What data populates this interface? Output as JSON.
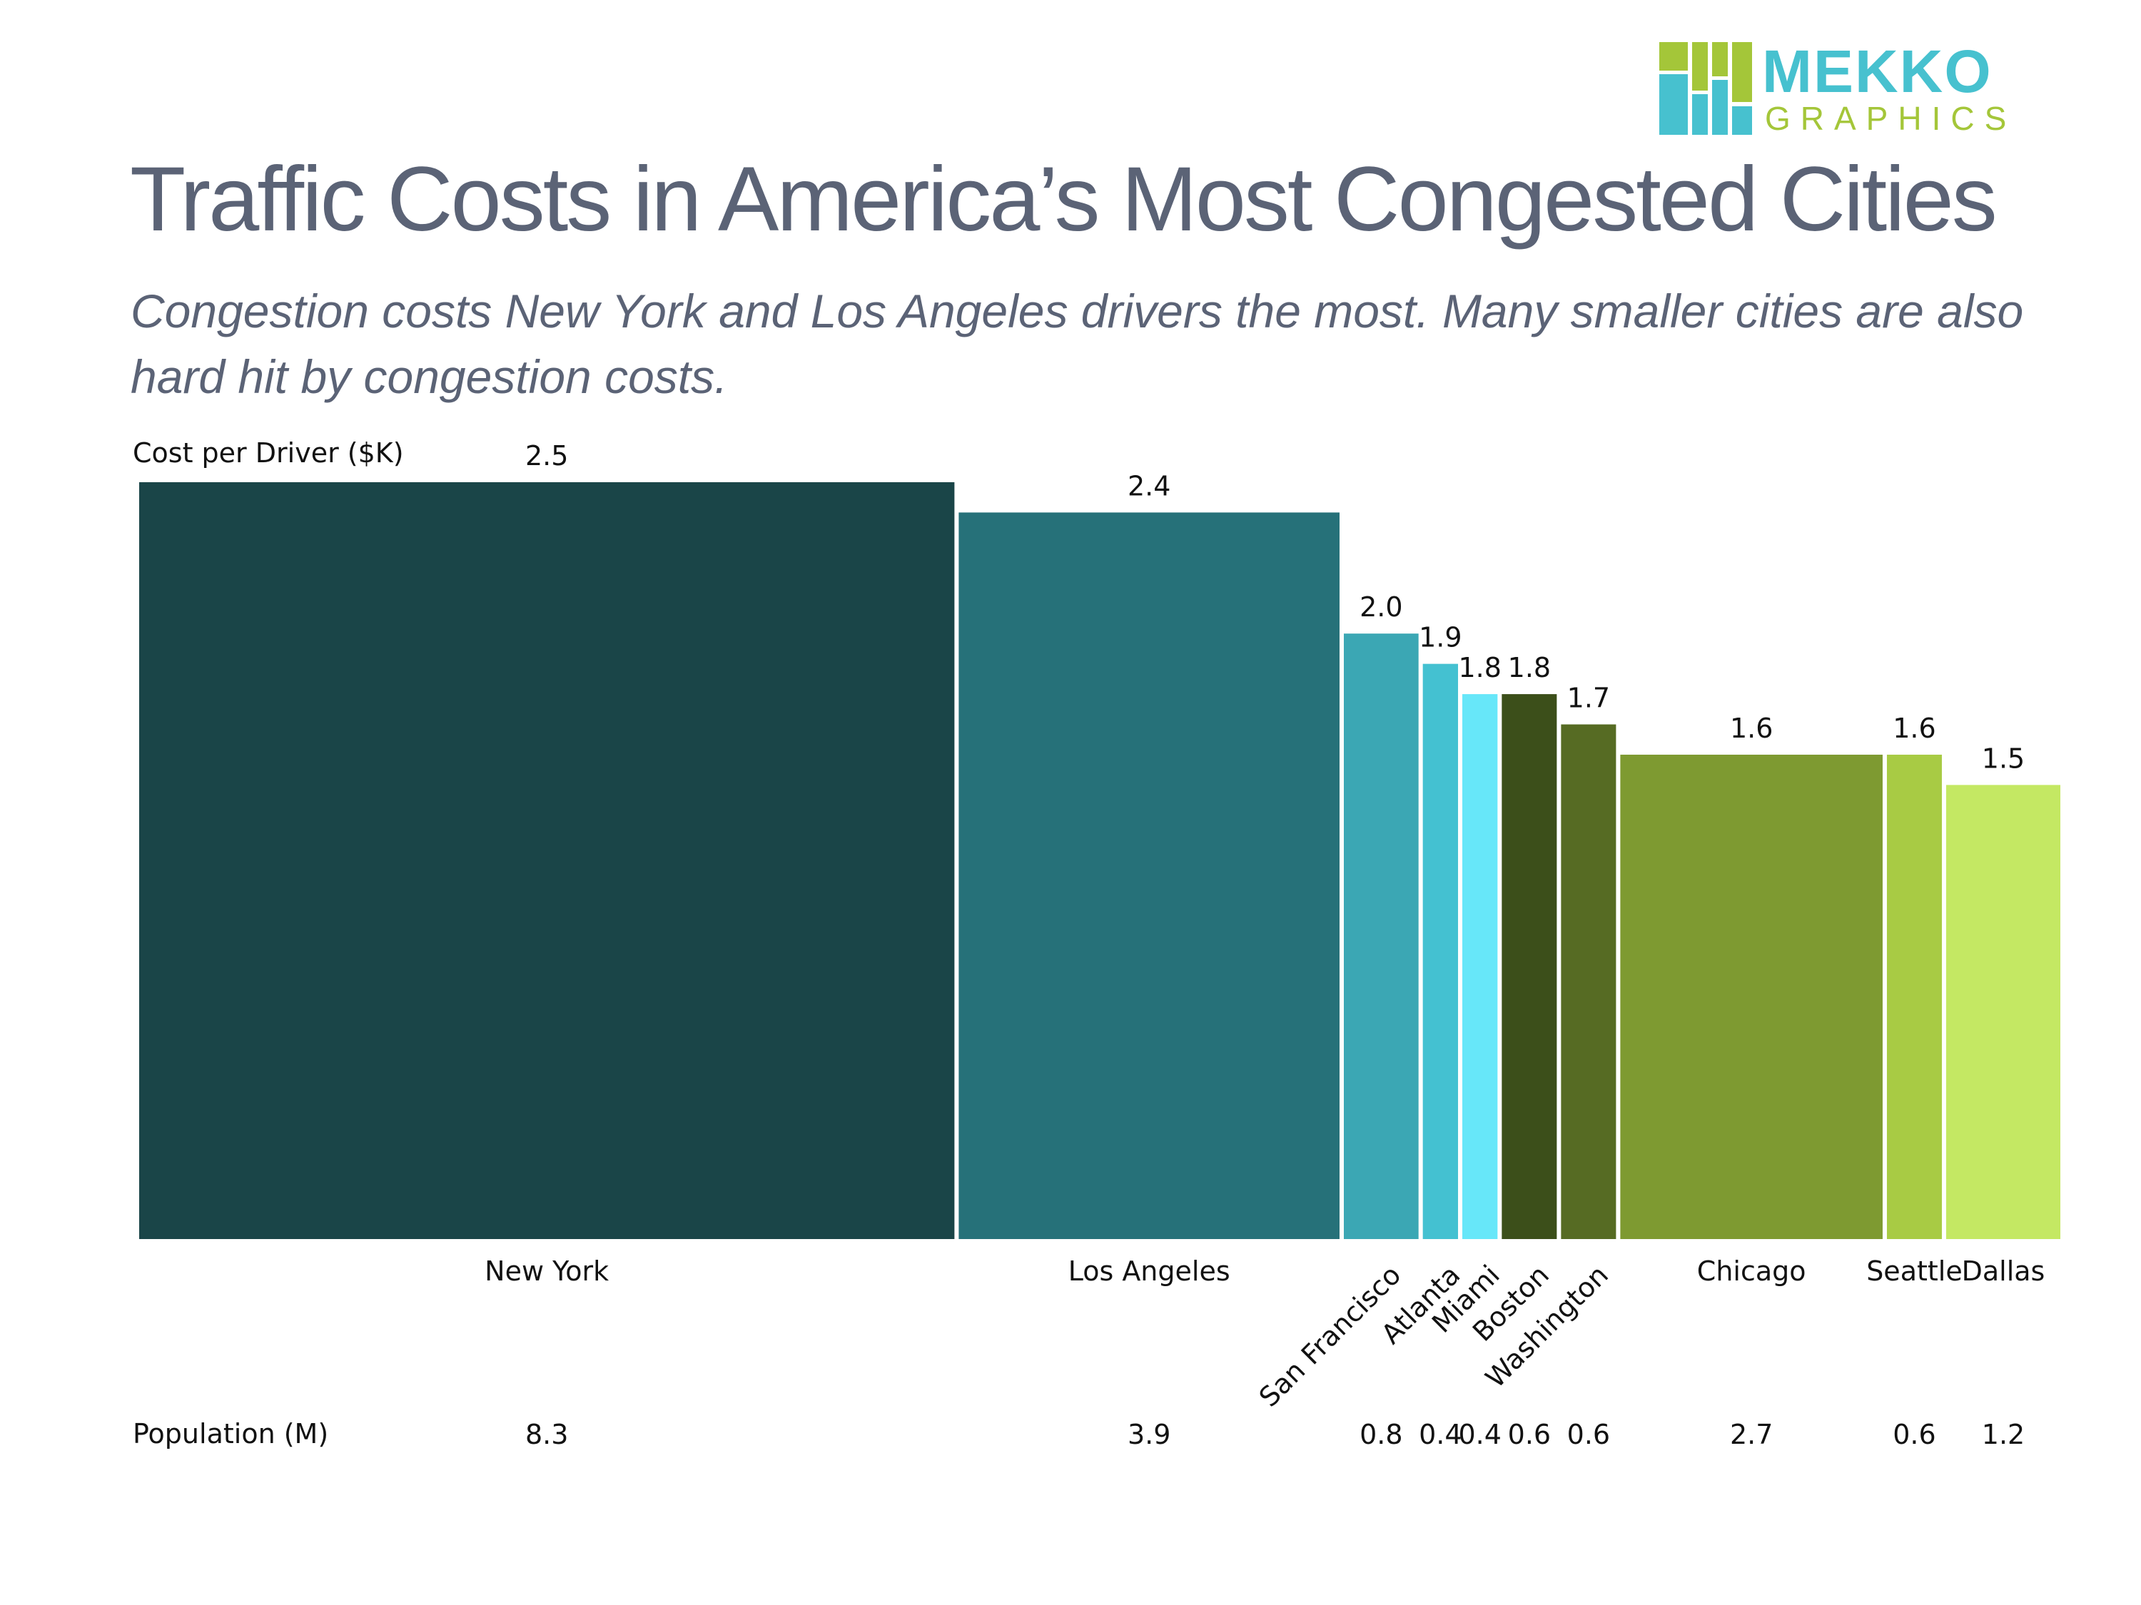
{
  "logo": {
    "word1": "MEKKO",
    "word2": "GRAPHICS",
    "colors": {
      "green": "#a4c639",
      "teal": "#47c1cf"
    }
  },
  "title": "Traffic Costs in America’s Most Congested Cities",
  "subtitle": "Congestion costs New York and Los Angeles drivers the most.  Many smaller cities are also hard hit by congestion costs.",
  "chart_data": {
    "type": "bar",
    "variant": "marimekko",
    "title": "Traffic Costs in America’s Most Congested Cities",
    "ylabel": "Cost per Driver ($K)",
    "width_label": "Population (M)",
    "ylim": [
      0,
      2.5
    ],
    "categories": [
      "New York",
      "Los Angeles",
      "San Francisco",
      "Atlanta",
      "Miami",
      "Boston",
      "Washington",
      "Chicago",
      "Seattle",
      "Dallas"
    ],
    "values": [
      2.5,
      2.4,
      2.0,
      1.9,
      1.8,
      1.8,
      1.7,
      1.6,
      1.6,
      1.5
    ],
    "value_labels": [
      "2.5",
      "2.4",
      "2.0",
      "1.9",
      "1.8",
      "1.8",
      "1.7",
      "1.6",
      "1.6",
      "1.5"
    ],
    "widths": [
      8.3,
      3.9,
      0.8,
      0.4,
      0.4,
      0.6,
      0.6,
      2.7,
      0.6,
      1.2
    ],
    "width_labels": [
      "8.3",
      "3.9",
      "0.8",
      "0.4",
      "0.4",
      "0.6",
      "0.6",
      "2.7",
      "0.6",
      "1.2"
    ],
    "rotated_labels": [
      "San Francisco",
      "Atlanta",
      "Miami",
      "Boston",
      "Washington"
    ],
    "colors": [
      "#1a4548",
      "#267179",
      "#3ba7b4",
      "#44c1d1",
      "#67e7f9",
      "#3c4f1a",
      "#566b23",
      "#7e9a31",
      "#a8cb44",
      "#c4e863"
    ]
  }
}
